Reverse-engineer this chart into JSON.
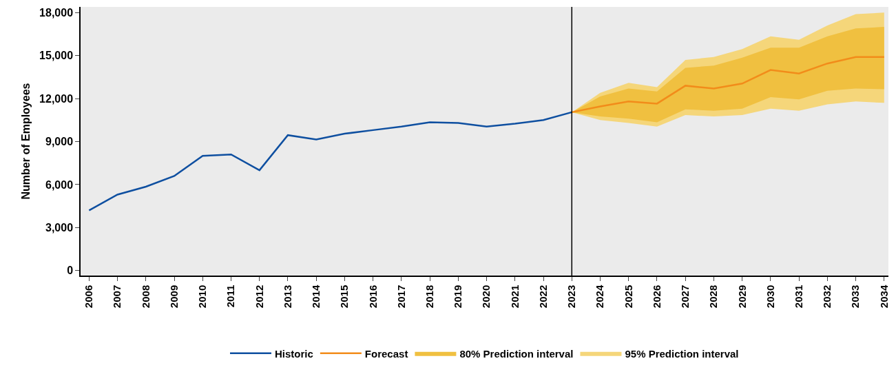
{
  "chart_data": {
    "type": "line",
    "ylabel": "Number of Employees",
    "xlim": [
      2005.7,
      2034.15
    ],
    "xticks": [
      2006,
      2007,
      2008,
      2009,
      2010,
      2011,
      2012,
      2013,
      2014,
      2015,
      2016,
      2017,
      2018,
      2019,
      2020,
      2021,
      2022,
      2023,
      2024,
      2025,
      2026,
      2027,
      2028,
      2029,
      2030,
      2031,
      2032,
      2033,
      2034
    ],
    "ylim": [
      -350,
      18400
    ],
    "yticks": [
      {
        "value": 0,
        "label": "0"
      },
      {
        "value": 3000,
        "label": "3,000"
      },
      {
        "value": 6000,
        "label": "6,000"
      },
      {
        "value": 9000,
        "label": "9,000"
      },
      {
        "value": 12000,
        "label": "12,000"
      },
      {
        "value": 15000,
        "label": "15,000"
      },
      {
        "value": 18000,
        "label": "18,000"
      }
    ],
    "grid": false,
    "legend": "bottom",
    "marker": "none",
    "line_style": "solid",
    "ref_lines": [
      {
        "axis": "x",
        "value": 2023,
        "color": "#000000"
      }
    ],
    "series": [
      {
        "name": "Historic",
        "color": "#0e4fa0",
        "x": [
          2006,
          2007,
          2008,
          2009,
          2010,
          2011,
          2012,
          2013,
          2014,
          2015,
          2016,
          2017,
          2018,
          2019,
          2020,
          2021,
          2022,
          2023
        ],
        "values": [
          4200,
          5300,
          5850,
          6600,
          8000,
          8100,
          7000,
          9450,
          9150,
          9550,
          9800,
          10050,
          10350,
          10300,
          10050,
          10250,
          10500,
          11050
        ]
      },
      {
        "name": "Forecast",
        "color": "#f28c1a",
        "x": [
          2023,
          2024,
          2025,
          2026,
          2027,
          2028,
          2029,
          2030,
          2031,
          2032,
          2033,
          2034
        ],
        "values": [
          11050,
          11450,
          11800,
          11650,
          12900,
          12700,
          13050,
          14000,
          13750,
          14450,
          14900,
          14900
        ]
      },
      {
        "name": "80% Prediction interval",
        "type": "line",
        "color": "#f0c040",
        "x": [
          2023,
          2024,
          2025,
          2026,
          2027,
          2028,
          2029,
          2030,
          2031,
          2032,
          2033,
          2034
        ],
        "values": [
          null,
          null,
          null,
          null,
          null,
          null,
          null,
          null,
          null,
          null,
          null,
          null
        ],
        "lower": [
          11050,
          10750,
          10600,
          10350,
          11250,
          11150,
          11300,
          12100,
          11950,
          12550,
          12700,
          12650
        ],
        "upper": [
          11050,
          12150,
          12700,
          12500,
          14150,
          14300,
          14850,
          15550,
          15550,
          16350,
          16900,
          17000
        ]
      },
      {
        "name": "95% Prediction interval",
        "type": "line",
        "color": "#f5d67a",
        "x": [
          2023,
          2024,
          2025,
          2026,
          2027,
          2028,
          2029,
          2030,
          2031,
          2032,
          2033,
          2034
        ],
        "values": [
          null,
          null,
          null,
          null,
          null,
          null,
          null,
          null,
          null,
          null,
          null,
          null
        ],
        "lower": [
          11050,
          10500,
          10300,
          10050,
          10850,
          10750,
          10850,
          11300,
          11150,
          11600,
          11800,
          11700
        ],
        "upper": [
          11050,
          12400,
          13100,
          12800,
          14700,
          14900,
          15450,
          16350,
          16100,
          17100,
          17900,
          18000
        ]
      }
    ]
  }
}
